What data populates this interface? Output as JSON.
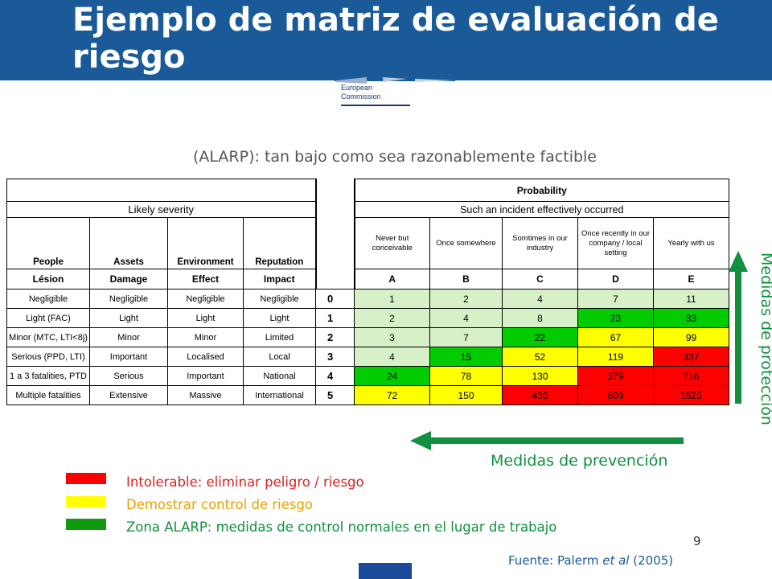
{
  "slide": {
    "title": "Ejemplo de matriz de evaluación de riesgo",
    "logo_line1": "European",
    "logo_line2": "Commission",
    "alarp": "(ALARP): tan bajo como sea razonablemente factible",
    "page_number": "9",
    "source_prefix": "Fuente: Palerm ",
    "source_italic": "et al",
    "source_suffix": " (2005)"
  },
  "matrix": {
    "severity_title": "Likely severity",
    "probability_title": "Probability",
    "probability_subtitle": "Such an incident effectively occurred",
    "severity_headers": [
      "People",
      "Assets",
      "Environment",
      "Reputation"
    ],
    "severity_subheaders": [
      "Lésion",
      "Damage",
      "Effect",
      "Impact"
    ],
    "frequency_headers": [
      "Never but conceivable",
      "Once somewhere",
      "Somtimes in our industry",
      "Once recently in our company / local setting",
      "Yearly with us"
    ],
    "probability_letters": [
      "A",
      "B",
      "C",
      "D",
      "E"
    ],
    "rows": [
      {
        "people": "Negligible",
        "assets": "Negligible",
        "environment": "Negligible",
        "reputation": "Negligible",
        "index": "0",
        "values": [
          "1",
          "2",
          "4",
          "7",
          "11"
        ],
        "colors": [
          "lg",
          "lg",
          "lg",
          "lg",
          "lg"
        ]
      },
      {
        "people": "Light (FAC)",
        "assets": "Light",
        "environment": "Light",
        "reputation": "Light",
        "index": "1",
        "values": [
          "2",
          "4",
          "8",
          "23",
          "33"
        ],
        "colors": [
          "lg",
          "lg",
          "lg",
          "g",
          "g"
        ]
      },
      {
        "people": "Minor (MTC, LTI<8j)",
        "assets": "Minor",
        "environment": "Minor",
        "reputation": "Limited",
        "index": "2",
        "values": [
          "3",
          "7",
          "22",
          "67",
          "99"
        ],
        "colors": [
          "lg",
          "lg",
          "g",
          "y",
          "y"
        ]
      },
      {
        "people": "Serious (PPD, LTI)",
        "assets": "Important",
        "environment": "Localised",
        "reputation": "Local",
        "index": "3",
        "values": [
          "4",
          "15",
          "52",
          "119",
          "337"
        ],
        "colors": [
          "lg",
          "g",
          "y",
          "y",
          "r"
        ]
      },
      {
        "people": "1 a 3 fatalities, PTD",
        "assets": "Serious",
        "environment": "Important",
        "reputation": "National",
        "index": "4",
        "values": [
          "24",
          "78",
          "130",
          "379",
          "716"
        ],
        "colors": [
          "g",
          "y",
          "y",
          "r",
          "r"
        ]
      },
      {
        "people": "Multiple fatalities",
        "assets": "Extensive",
        "environment": "Massive",
        "reputation": "International",
        "index": "5",
        "values": [
          "72",
          "150",
          "430",
          "809",
          "1525"
        ],
        "colors": [
          "y",
          "y",
          "r",
          "r",
          "r"
        ]
      }
    ]
  },
  "arrows": {
    "prevention": "Medidas de prevención",
    "protection": "Medidas de protección",
    "color": "#109040"
  },
  "legend": [
    {
      "text": "Intolerable: eliminar peligro / riesgo",
      "swatch": "#ff0000",
      "text_color": "#e02020"
    },
    {
      "text": "Demostrar control de riesgo",
      "swatch": "#ffff00",
      "text_color": "#e8a000"
    },
    {
      "text": "Zona ALARP: medidas de control normales en el lugar de trabajo",
      "swatch": "#109a10",
      "text_color": "#109040"
    }
  ]
}
